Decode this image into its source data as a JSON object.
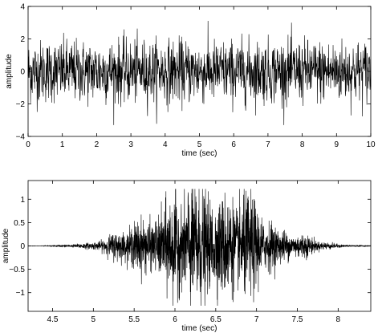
{
  "chart_data": [
    {
      "type": "line",
      "xlabel": "time (sec)",
      "ylabel": "amplitude",
      "xlim": [
        0,
        10
      ],
      "ylim": [
        -4,
        4
      ],
      "x_ticks": [
        0,
        1,
        2,
        3,
        4,
        5,
        6,
        7,
        8,
        9,
        10
      ],
      "x_tick_labels": [
        "0",
        "1",
        "2",
        "3",
        "4",
        "5",
        "6",
        "7",
        "8",
        "9",
        "10"
      ],
      "y_ticks": [
        -4,
        -2,
        0,
        2,
        4
      ],
      "y_tick_labels": [
        "−4",
        "−2",
        "0",
        "2",
        "4"
      ],
      "grid": false,
      "series": [
        {
          "color": "#000000",
          "signal": "white noise",
          "x_range": [
            0,
            10
          ],
          "std": 0.95,
          "peak_range": [
            -3.3,
            3.4
          ]
        }
      ]
    },
    {
      "type": "line",
      "xlabel": "time (sec)",
      "ylabel": "amplitude",
      "xlim": [
        4.2,
        8.4
      ],
      "ylim": [
        -1.4,
        1.4
      ],
      "x_ticks": [
        4.5,
        5,
        5.5,
        6,
        6.5,
        7,
        7.5,
        8
      ],
      "x_tick_labels": [
        "4.5",
        "5",
        "5.5",
        "6",
        "6.5",
        "7",
        "7.5",
        "8"
      ],
      "y_ticks": [
        -1,
        -0.5,
        0,
        0.5,
        1
      ],
      "y_tick_labels": [
        "−1",
        "−0.5",
        "0",
        "0.5",
        "1"
      ],
      "grid": false,
      "series": [
        {
          "color": "#000000",
          "signal": "windowed burst",
          "x_range": [
            4.2,
            8.4
          ],
          "burst_center": 6.4,
          "burst_span": [
            4.9,
            7.9
          ],
          "peak_range": [
            -1.28,
            1.22
          ]
        }
      ]
    }
  ]
}
